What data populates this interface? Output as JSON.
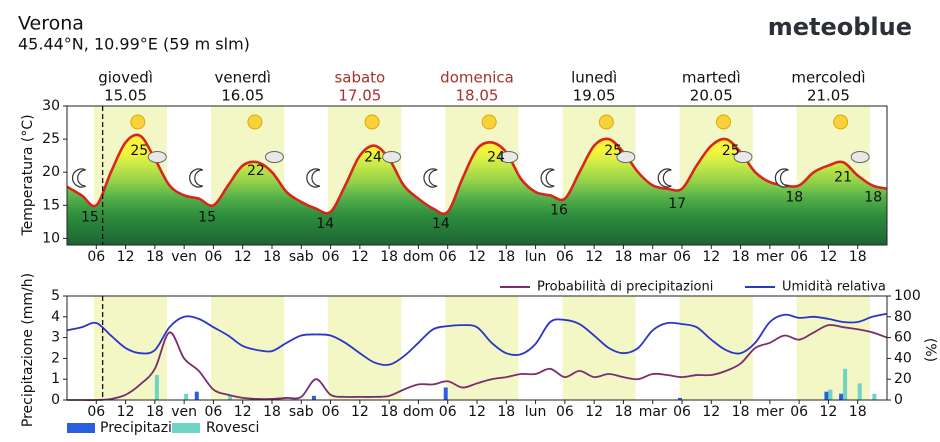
{
  "header": {
    "title": "Verona",
    "subtitle": "45.44°N, 10.99°E (59 m slm)",
    "logo": "meteoblue"
  },
  "days": [
    {
      "name": "giovedì",
      "date": "15.05",
      "color": "#111111"
    },
    {
      "name": "venerdì",
      "date": "16.05",
      "color": "#111111"
    },
    {
      "name": "sabato",
      "date": "17.05",
      "color": "#a8302a"
    },
    {
      "name": "domenica",
      "date": "18.05",
      "color": "#a8302a"
    },
    {
      "name": "lunedì",
      "date": "19.05",
      "color": "#111111"
    },
    {
      "name": "martedì",
      "date": "20.05",
      "color": "#111111"
    },
    {
      "name": "mercoledì",
      "date": "21.05",
      "color": "#111111"
    }
  ],
  "chart_data": [
    {
      "type": "line",
      "ylabel": "Temperatura (°C)",
      "ylim": [
        9,
        30
      ],
      "yticks": [
        10,
        15,
        20,
        25,
        30
      ],
      "xtick_labels": [
        "06",
        "12",
        "18",
        "ven",
        "06",
        "12",
        "18",
        "sab",
        "06",
        "12",
        "18",
        "dom",
        "06",
        "12",
        "18",
        "lun",
        "06",
        "12",
        "18",
        "mar",
        "06",
        "12",
        "18",
        "mer",
        "06",
        "12",
        "18"
      ],
      "series": [
        {
          "color": "#d9261c",
          "values": [
            17.8,
            16.5,
            15,
            20,
            24.5,
            25.5,
            22,
            18,
            16.5,
            16,
            15,
            18,
            21,
            21.5,
            20,
            17,
            15.5,
            14.5,
            14,
            18,
            22.5,
            24,
            22,
            18,
            16,
            14.5,
            14,
            19,
            23.5,
            24.5,
            23,
            19,
            17,
            16.5,
            16,
            20,
            24,
            25,
            23,
            20,
            18,
            17.5,
            17.5,
            21,
            24,
            25,
            23,
            20,
            18.5,
            18,
            18,
            20,
            21,
            21.5,
            19.5,
            18,
            17.5
          ]
        }
      ],
      "annotations": [
        15,
        25,
        15,
        22,
        14,
        24,
        14,
        24,
        16,
        25,
        17,
        25,
        18,
        21,
        18
      ]
    },
    {
      "type": "bar_line",
      "ylabel": "Precipitazione (mm/h)",
      "y2label": "(%)",
      "ylim": [
        0,
        5
      ],
      "yticks": [
        0,
        1,
        2,
        3,
        4,
        5
      ],
      "y2lim": [
        0,
        100
      ],
      "y2ticks": [
        0,
        20,
        40,
        60,
        80,
        100
      ],
      "xtick_labels": [
        "06",
        "12",
        "18",
        "ven",
        "06",
        "12",
        "18",
        "sab",
        "06",
        "12",
        "18",
        "dom",
        "06",
        "12",
        "18",
        "lun",
        "06",
        "12",
        "18",
        "mar",
        "06",
        "12",
        "18",
        "mer",
        "06",
        "12",
        "18"
      ],
      "series": [
        {
          "name": "Precipitazione",
          "kind": "bar",
          "color": "#2a5fe0",
          "values": [
            0,
            0,
            0,
            0,
            0,
            0,
            0,
            0,
            0,
            0.4,
            0,
            0,
            0,
            0,
            0,
            0,
            0,
            0.2,
            0,
            0,
            0,
            0,
            0,
            0,
            0,
            0,
            0.6,
            0,
            0,
            0,
            0,
            0,
            0,
            0,
            0,
            0,
            0,
            0,
            0,
            0,
            0,
            0,
            0.1,
            0,
            0,
            0,
            0,
            0,
            0,
            0,
            0,
            0,
            0.4,
            0.3,
            0,
            0,
            0
          ]
        },
        {
          "name": "Rovesci",
          "kind": "bar",
          "color": "#6fd3c5",
          "values": [
            0,
            0,
            0,
            0,
            0,
            0,
            1.2,
            0,
            0.3,
            0,
            0,
            0.2,
            0,
            0,
            0,
            0,
            0,
            0,
            0,
            0,
            0,
            0,
            0,
            0,
            0,
            0,
            0,
            0,
            0,
            0,
            0,
            0,
            0,
            0,
            0,
            0,
            0,
            0,
            0,
            0,
            0,
            0,
            0,
            0,
            0,
            0,
            0,
            0,
            0,
            0,
            0,
            0,
            0.5,
            1.5,
            0.8,
            0.3,
            0
          ]
        },
        {
          "name": "Probabilità di precipitazioni",
          "kind": "line",
          "axis": "y2",
          "color": "#7a2e6e",
          "values": [
            0,
            0,
            0,
            1,
            5,
            15,
            30,
            65,
            40,
            28,
            10,
            5,
            2,
            1,
            1,
            2,
            3,
            20,
            5,
            3,
            3,
            3,
            4,
            10,
            15,
            15,
            18,
            12,
            16,
            20,
            22,
            25,
            25,
            30,
            22,
            28,
            22,
            25,
            22,
            20,
            25,
            24,
            22,
            24,
            24,
            28,
            35,
            50,
            55,
            62,
            58,
            65,
            72,
            70,
            68,
            65,
            60
          ]
        },
        {
          "name": "Umidità relativa",
          "kind": "line",
          "axis": "y2",
          "color": "#2b35c8",
          "values": [
            67,
            70,
            74,
            62,
            50,
            45,
            48,
            70,
            80,
            78,
            70,
            62,
            52,
            48,
            47,
            55,
            62,
            63,
            62,
            55,
            45,
            36,
            34,
            42,
            55,
            68,
            71,
            72,
            70,
            55,
            45,
            44,
            54,
            75,
            77,
            73,
            62,
            50,
            45,
            50,
            67,
            74,
            73,
            70,
            58,
            48,
            45,
            55,
            75,
            82,
            79,
            80,
            78,
            75,
            75,
            80,
            83
          ]
        }
      ]
    }
  ]
}
